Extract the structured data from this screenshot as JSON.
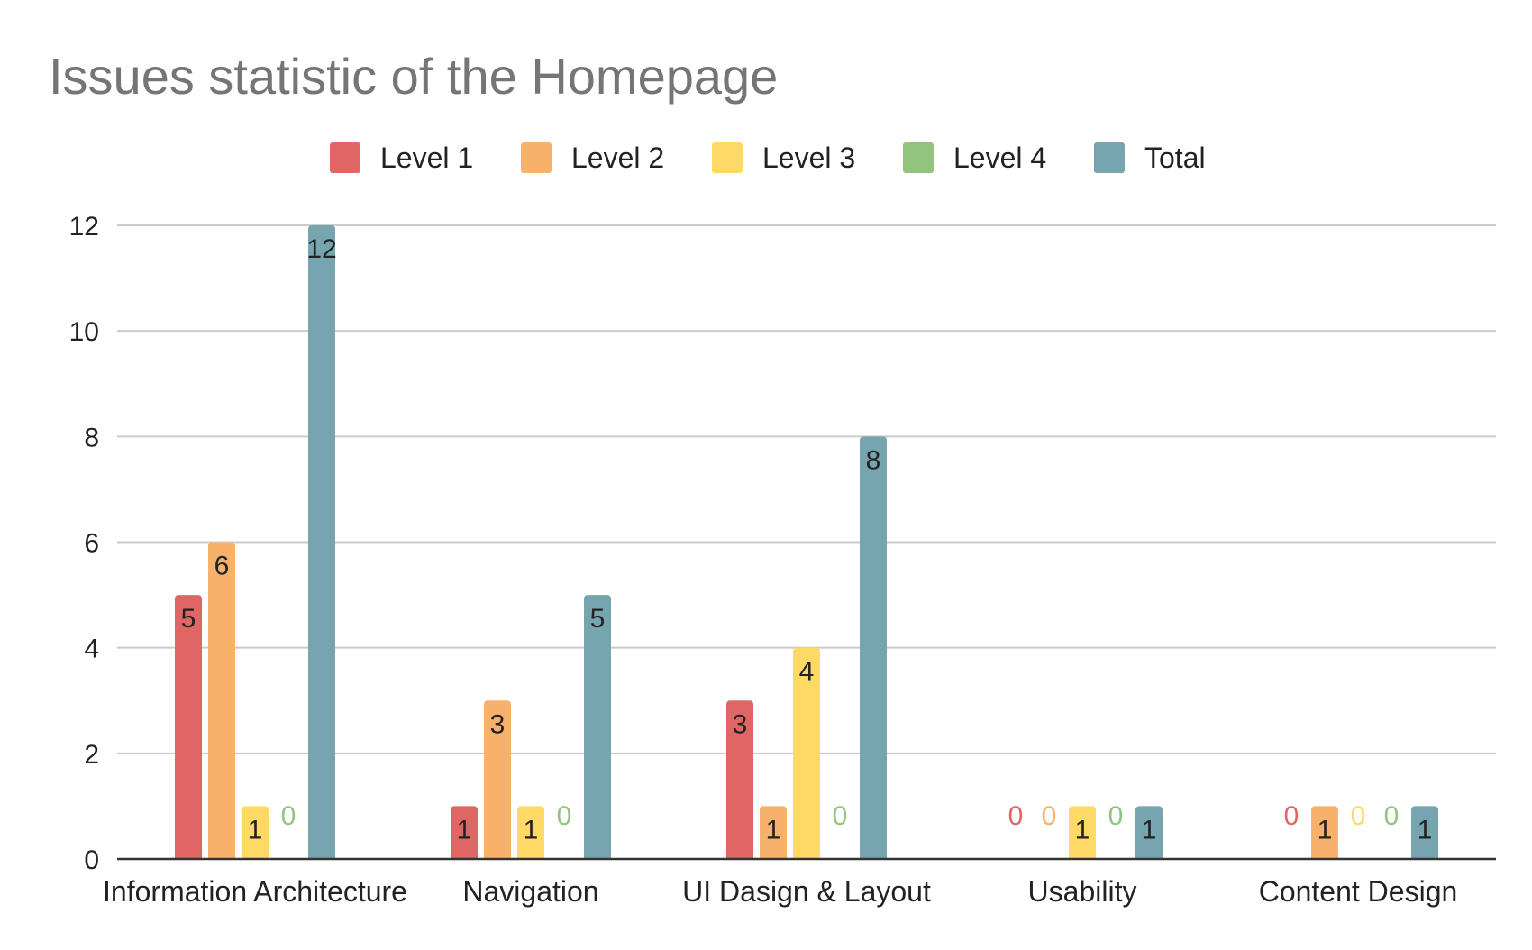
{
  "chart_data": {
    "type": "bar",
    "title": "Issues statistic of the Homepage",
    "xlabel": "",
    "ylabel": "",
    "ylim": [
      0,
      12
    ],
    "yticks": [
      0,
      2,
      4,
      6,
      8,
      10,
      12
    ],
    "grid": true,
    "legend_position": "top",
    "categories": [
      "Information Architecture",
      "Navigation",
      "UI Dasign & Layout",
      "Usability",
      "Content Design"
    ],
    "series": [
      {
        "name": "Level 1",
        "color": "#e06666",
        "values": [
          5,
          1,
          3,
          0,
          0
        ]
      },
      {
        "name": "Level 2",
        "color": "#f6b26b",
        "values": [
          6,
          3,
          1,
          0,
          1
        ]
      },
      {
        "name": "Level 3",
        "color": "#ffd966",
        "values": [
          1,
          1,
          4,
          1,
          0
        ]
      },
      {
        "name": "Level 4",
        "color": "#93c47d",
        "values": [
          0,
          0,
          0,
          0,
          0
        ]
      },
      {
        "name": "Total",
        "color": "#76a5af",
        "values": [
          12,
          5,
          8,
          1,
          1
        ]
      }
    ]
  }
}
